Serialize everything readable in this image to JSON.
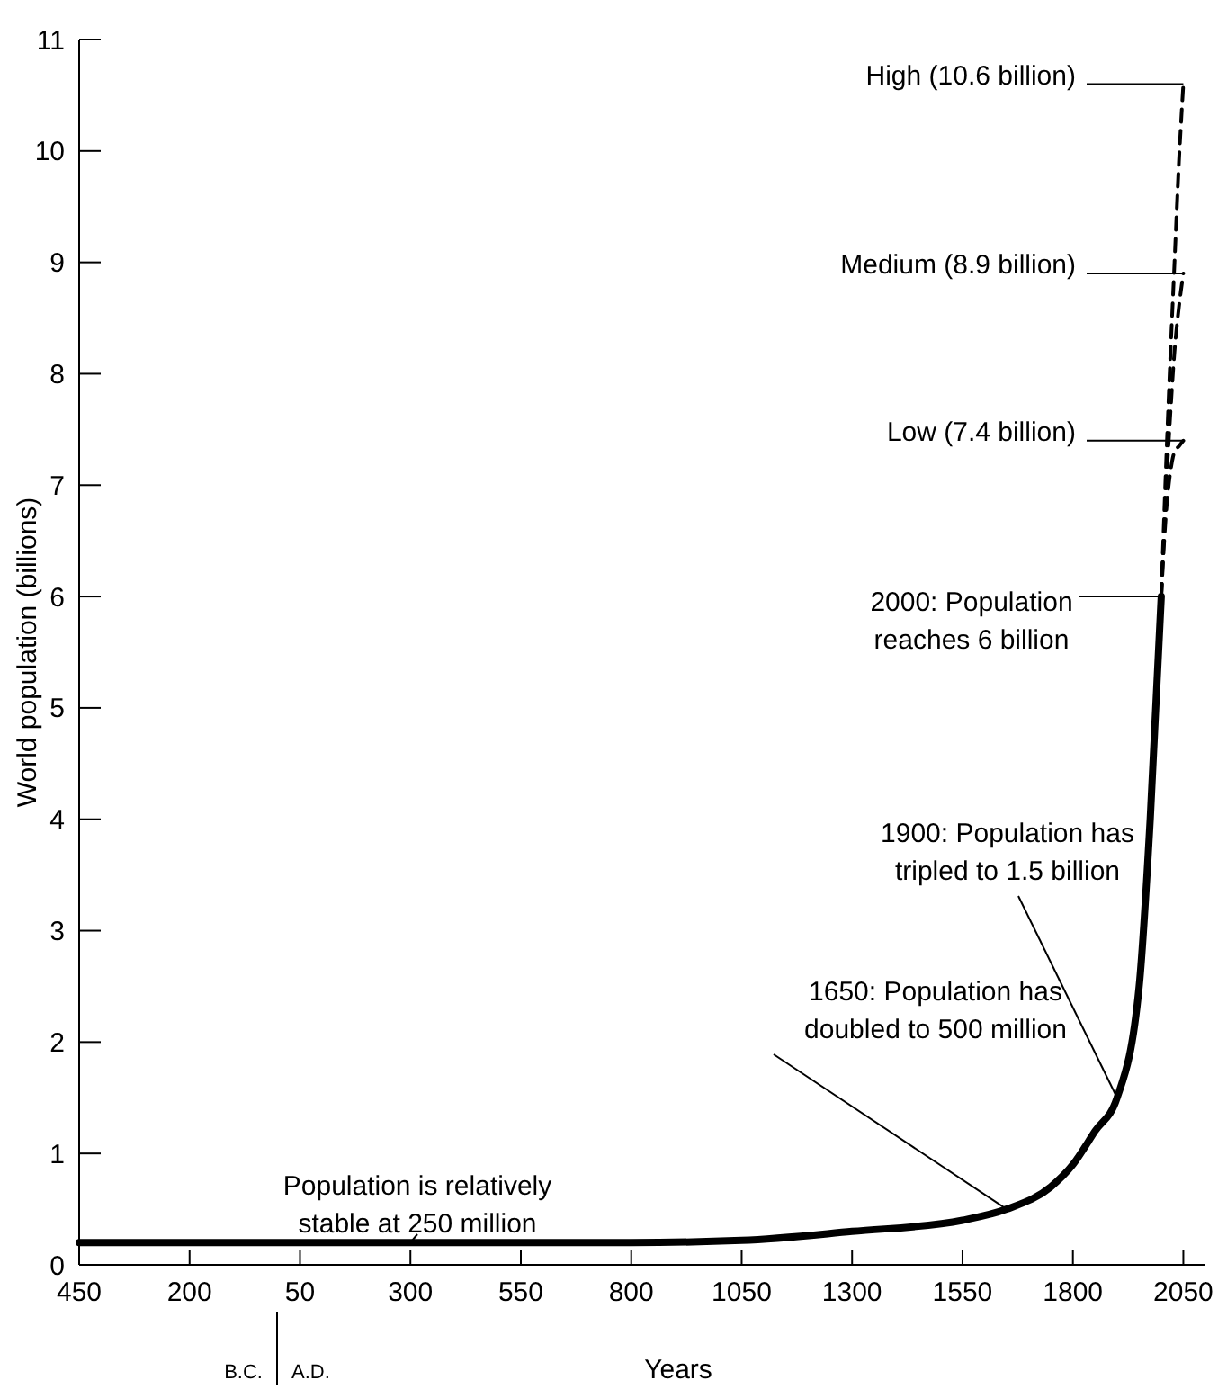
{
  "chart_data": {
    "type": "line",
    "xlabel": "Years",
    "ylabel": "World population (billions)",
    "xlim": [
      -450,
      2100
    ],
    "ylim": [
      0,
      11
    ],
    "xticks": [
      {
        "value": -450,
        "label": "450"
      },
      {
        "value": -200,
        "label": "200"
      },
      50,
      300,
      550,
      800,
      1050,
      1300,
      1550,
      1800,
      2050
    ],
    "yticks": [
      0,
      1,
      2,
      3,
      4,
      5,
      6,
      7,
      8,
      9,
      10,
      11
    ],
    "series": [
      {
        "color": "#000000",
        "line_style": "solid",
        "x": [
          -450,
          -200,
          0,
          300,
          550,
          800,
          1050,
          1300,
          1550,
          1650,
          1750,
          1800,
          1850,
          1900,
          1950,
          1975,
          2000
        ],
        "values": [
          0.2,
          0.2,
          0.2,
          0.2,
          0.2,
          0.2,
          0.22,
          0.3,
          0.4,
          0.5,
          0.7,
          0.9,
          1.2,
          1.5,
          2.5,
          4,
          6
        ]
      },
      {
        "color": "#000000",
        "line_style": "dashed",
        "x": [
          2000,
          2010,
          2020,
          2030,
          2040,
          2050
        ],
        "values": [
          6,
          7.1,
          8.1,
          9,
          9.9,
          10.6
        ]
      },
      {
        "color": "#000000",
        "line_style": "dashed",
        "x": [
          2000,
          2010,
          2020,
          2030,
          2040,
          2050
        ],
        "values": [
          6,
          6.9,
          7.6,
          8.2,
          8.6,
          8.9
        ]
      },
      {
        "color": "#000000",
        "line_style": "dashed",
        "x": [
          2000,
          2010,
          2020,
          2030,
          2040,
          2050
        ],
        "values": [
          6,
          6.7,
          7.1,
          7.3,
          7.35,
          7.4
        ]
      }
    ],
    "annotations": [
      "High (10.6 billion)",
      "Medium (8.9 billion)",
      "Low (7.4 billion)",
      "2000: Population\nreaches 6 billion",
      {
        "text": "1900: Population has\ntripled to 1.5 billion",
        "x": 1900,
        "y": 1.5
      },
      {
        "text": "1650: Population has\ndoubled to 500 million",
        "x": 1650,
        "y": 0.5
      },
      {
        "text": "Population is relatively\nstable at 250 million",
        "x": 300,
        "y": 0.2
      },
      "B.C.",
      "A.D."
    ]
  }
}
